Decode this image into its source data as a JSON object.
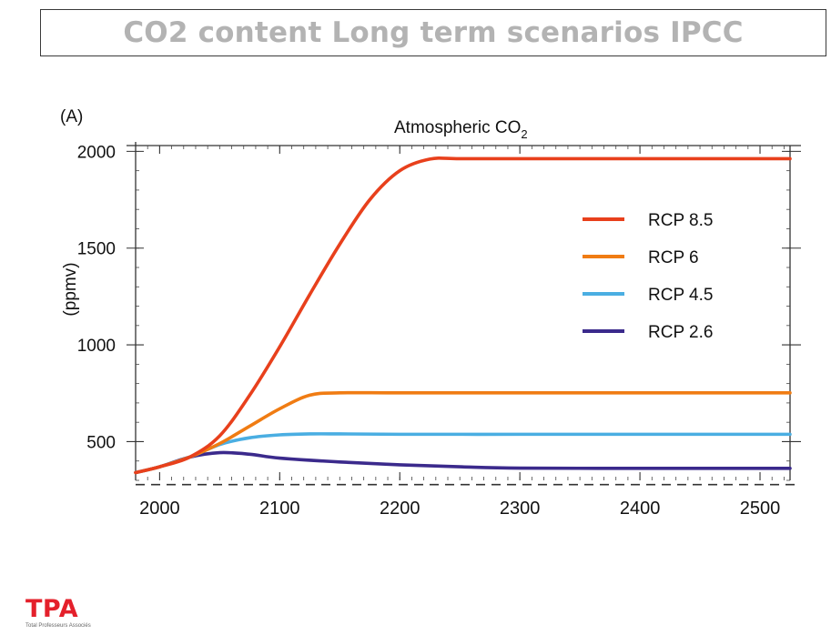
{
  "slide": {
    "title": "CO2 content Long term scenarios IPCC",
    "logo_text": "TPA",
    "logo_subtext": "Total Professeurs Associés",
    "logo_color": "#e4202b",
    "title_color": "#b3b3b3"
  },
  "chart_data": {
    "type": "line",
    "panel_label": "(A)",
    "title": "Atmospheric CO",
    "title_subscript": "2",
    "ylabel": "(ppmv)",
    "xlabel": "",
    "xlim": [
      1980,
      2525
    ],
    "ylim": [
      300,
      2030
    ],
    "x_ticks": [
      2000,
      2100,
      2200,
      2300,
      2400,
      2500
    ],
    "y_ticks": [
      500,
      1000,
      1500,
      2000
    ],
    "grid": false,
    "legend_position": "right",
    "reference_line": {
      "style": "dashed",
      "y": 278,
      "color": "#333333"
    },
    "series": [
      {
        "name": "RCP 8.5",
        "color": "#e8401c",
        "x": [
          1980,
          2000,
          2025,
          2050,
          2075,
          2100,
          2125,
          2150,
          2175,
          2200,
          2225,
          2250,
          2300,
          2400,
          2500,
          2525
        ],
        "y": [
          340,
          370,
          420,
          530,
          740,
          990,
          1260,
          1520,
          1750,
          1900,
          1960,
          1962,
          1962,
          1962,
          1962,
          1962
        ]
      },
      {
        "name": "RCP 6",
        "color": "#f07c13",
        "x": [
          1980,
          2000,
          2025,
          2050,
          2075,
          2100,
          2125,
          2150,
          2200,
          2300,
          2400,
          2500,
          2525
        ],
        "y": [
          340,
          370,
          420,
          490,
          580,
          670,
          740,
          752,
          752,
          752,
          752,
          752,
          752
        ]
      },
      {
        "name": "RCP 4.5",
        "color": "#4aaee2",
        "x": [
          1980,
          2000,
          2025,
          2050,
          2075,
          2100,
          2125,
          2150,
          2200,
          2300,
          2400,
          2500,
          2525
        ],
        "y": [
          340,
          370,
          420,
          485,
          520,
          535,
          540,
          540,
          538,
          538,
          538,
          538,
          538
        ]
      },
      {
        "name": "RCP 2.6",
        "color": "#3b2a8c",
        "x": [
          1980,
          2000,
          2025,
          2050,
          2075,
          2100,
          2150,
          2200,
          2250,
          2300,
          2400,
          2500,
          2525
        ],
        "y": [
          340,
          370,
          420,
          443,
          435,
          415,
          395,
          380,
          370,
          363,
          362,
          362,
          362
        ]
      }
    ]
  }
}
